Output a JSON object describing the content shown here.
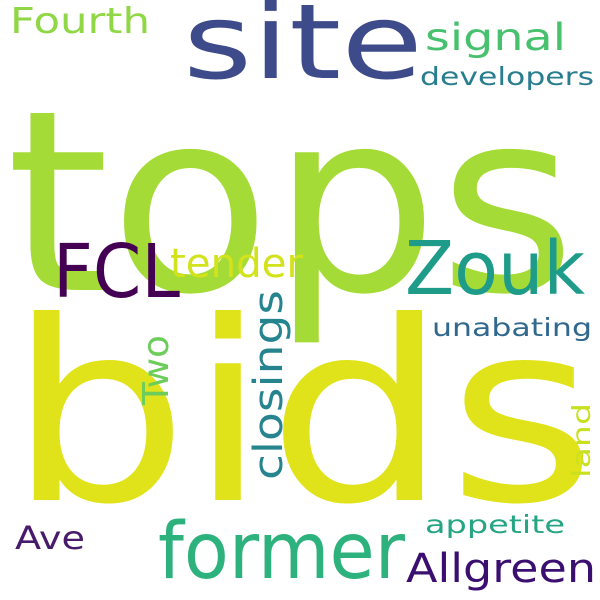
{
  "words": [
    {
      "text": "tops",
      "color": "#a5db36"
    },
    {
      "text": "bids",
      "color": "#e0e31a"
    },
    {
      "text": "site",
      "color": "#3e4b8a"
    },
    {
      "text": "former",
      "color": "#2db27d"
    },
    {
      "text": "Zouk",
      "color": "#1e9c89"
    },
    {
      "text": "FCL",
      "color": "#440154"
    },
    {
      "text": "tender",
      "color": "#d2e21b"
    },
    {
      "text": "closings",
      "color": "#25848e"
    },
    {
      "text": "Allgreen",
      "color": "#3b0f70"
    },
    {
      "text": "Fourth",
      "color": "#8fd744"
    },
    {
      "text": "signal",
      "color": "#48c16e"
    },
    {
      "text": "developers",
      "color": "#287d8e"
    },
    {
      "text": "Two",
      "color": "#6ccd5a"
    },
    {
      "text": "unabating",
      "color": "#31688e"
    },
    {
      "text": "appetite",
      "color": "#25a584"
    },
    {
      "text": "Ave",
      "color": "#481a6c"
    },
    {
      "text": "land",
      "color": "#c8e020"
    }
  ]
}
